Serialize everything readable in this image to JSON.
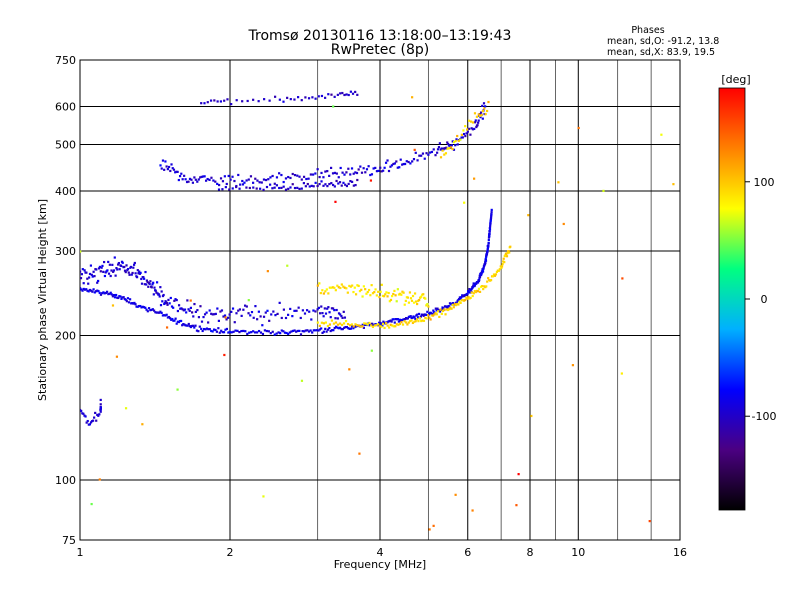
{
  "header": {
    "title": "Tromsø 20130116 13:18:00–13:19:43",
    "subtitle": "RwPretec (8p)",
    "stats_title": "Phases",
    "stats_o": "mean, sd,O: -91.2, 13.8",
    "stats_x": "mean, sd,X:  83.9, 19.5"
  },
  "chart_data": {
    "type": "scatter",
    "title": "Tromsø 20130116 13:18:00–13:19:43",
    "subtitle": "RwPretec (8p)",
    "xlabel": "Frequency [MHz]",
    "ylabel": "Stationary phase Virtual Height [km]",
    "x_scale": "log",
    "y_scale": "log",
    "xlim": [
      1,
      16
    ],
    "ylim": [
      75,
      750
    ],
    "x_ticks": [
      1,
      2,
      4,
      6,
      8,
      10,
      16
    ],
    "y_ticks": [
      75,
      100,
      200,
      300,
      400,
      500,
      600,
      750
    ],
    "grid": true,
    "colorbar": {
      "label": "[deg]",
      "range": [
        -180,
        180
      ],
      "ticks": [
        100,
        0,
        -100
      ],
      "colors": [
        "#000000",
        "#4b0082",
        "#0000ff",
        "#00b0ff",
        "#00ff80",
        "#ffff00",
        "#ff8000",
        "#ff0000"
      ]
    },
    "series": [
      {
        "curve": [
          [
            1.0,
            265
          ],
          [
            1.1,
            272
          ],
          [
            1.2,
            280
          ],
          [
            1.3,
            270
          ],
          [
            1.4,
            250
          ],
          [
            1.5,
            235
          ],
          [
            1.7,
            222
          ],
          [
            2.0,
            222
          ],
          [
            2.4,
            222
          ],
          [
            3.0,
            224
          ],
          [
            3.4,
            222
          ]
        ],
        "jitter": 0.03,
        "n": 230,
        "phase": -95,
        "phase_sd": 12
      },
      {
        "curve": [
          [
            1.0,
            250
          ],
          [
            1.15,
            245
          ],
          [
            1.3,
            232
          ],
          [
            1.5,
            218
          ],
          [
            1.7,
            208
          ],
          [
            2.0,
            204
          ],
          [
            2.5,
            203
          ],
          [
            3.0,
            205
          ],
          [
            3.5,
            208
          ],
          [
            4.0,
            212
          ],
          [
            4.5,
            217
          ],
          [
            5.0,
            222
          ],
          [
            5.5,
            230
          ],
          [
            6.0,
            245
          ],
          [
            6.3,
            260
          ],
          [
            6.5,
            282
          ],
          [
            6.6,
            310
          ],
          [
            6.7,
            365
          ]
        ],
        "jitter": 0.008,
        "n": 420,
        "phase": -88,
        "phase_sd": 10
      },
      {
        "curve": [
          [
            1.45,
            455
          ],
          [
            1.6,
            428
          ],
          [
            1.8,
            422
          ],
          [
            2.1,
            420
          ],
          [
            2.5,
            426
          ],
          [
            3.0,
            432
          ],
          [
            3.5,
            437
          ],
          [
            4.0,
            445
          ],
          [
            4.5,
            460
          ],
          [
            5.2,
            482
          ],
          [
            5.6,
            502
          ],
          [
            6.2,
            545
          ],
          [
            6.5,
            600
          ]
        ],
        "jitter": 0.02,
        "n": 210,
        "phase": -95,
        "phase_sd": 12
      },
      {
        "curve": [
          [
            1.9,
            405
          ],
          [
            2.4,
            408
          ],
          [
            2.8,
            410
          ],
          [
            3.2,
            414
          ],
          [
            3.6,
            418
          ]
        ],
        "jitter": 0.012,
        "n": 60,
        "phase": -100,
        "phase_sd": 10
      },
      {
        "curve": [
          [
            1.75,
            612
          ],
          [
            2.0,
            618
          ],
          [
            2.5,
            622
          ],
          [
            2.9,
            627
          ],
          [
            3.3,
            633
          ],
          [
            3.6,
            640
          ]
        ],
        "jitter": 0.01,
        "n": 45,
        "phase": -100,
        "phase_sd": 10
      },
      {
        "curve": [
          [
            1.0,
            138
          ],
          [
            1.05,
            132
          ],
          [
            1.1,
            138
          ],
          [
            1.1,
            145
          ]
        ],
        "jitter": 0.02,
        "n": 30,
        "phase": -95,
        "phase_sd": 8
      },
      {
        "curve": [
          [
            3.0,
            252
          ],
          [
            3.5,
            250
          ],
          [
            4.0,
            246
          ],
          [
            4.5,
            240
          ],
          [
            5.0,
            236
          ]
        ],
        "jitter": 0.025,
        "n": 90,
        "phase": 88,
        "phase_sd": 12
      },
      {
        "curve": [
          [
            3.0,
            212
          ],
          [
            3.5,
            211
          ],
          [
            4.0,
            210
          ],
          [
            4.5,
            212
          ],
          [
            5.0,
            218
          ],
          [
            5.5,
            226
          ],
          [
            6.0,
            240
          ],
          [
            6.5,
            255
          ],
          [
            7.0,
            278
          ],
          [
            7.3,
            305
          ]
        ],
        "jitter": 0.01,
        "n": 150,
        "phase": 95,
        "phase_sd": 12
      },
      {
        "curve": [
          [
            5.3,
            470
          ],
          [
            5.6,
            500
          ],
          [
            5.9,
            540
          ],
          [
            6.3,
            575
          ],
          [
            6.6,
            600
          ]
        ],
        "jitter": 0.02,
        "n": 30,
        "phase": 95,
        "phase_sd": 15
      },
      {
        "curve": [
          [
            1.0,
            170
          ],
          [
            16.0,
            170
          ]
        ],
        "jitter": 0.6,
        "n": 45,
        "phase": 120,
        "phase_sd": 55
      }
    ]
  }
}
